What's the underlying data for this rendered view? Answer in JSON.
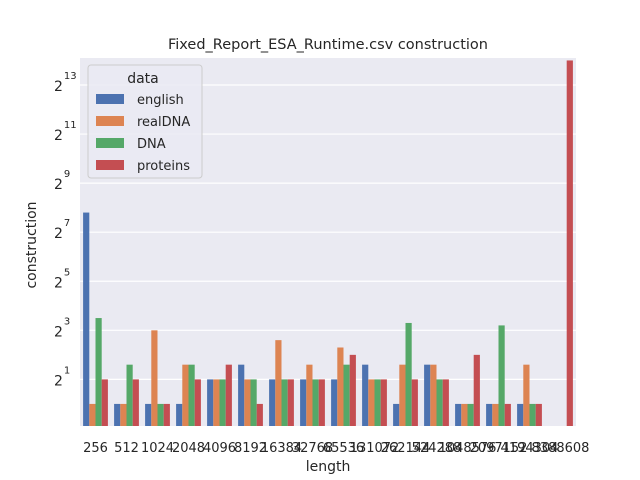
{
  "chart_data": {
    "type": "bar",
    "title": "Fixed_Report_ESA_Runtime.csv construction",
    "xlabel": "length",
    "ylabel": "construction",
    "yscale": "log2",
    "ylim_log2": [
      -0.9,
      14.1
    ],
    "yticks": [
      {
        "base": "2",
        "exp": "1",
        "log2": 1
      },
      {
        "base": "2",
        "exp": "3",
        "log2": 3
      },
      {
        "base": "2",
        "exp": "5",
        "log2": 5
      },
      {
        "base": "2",
        "exp": "7",
        "log2": 7
      },
      {
        "base": "2",
        "exp": "9",
        "log2": 9
      },
      {
        "base": "2",
        "exp": "11",
        "log2": 11
      },
      {
        "base": "2",
        "exp": "13",
        "log2": 13
      }
    ],
    "categories": [
      "256",
      "512",
      "1024",
      "2048",
      "4096",
      "8192",
      "16384",
      "32768",
      "65536",
      "131072",
      "262144",
      "524288",
      "1048576",
      "2097152",
      "4194304",
      "8388608"
    ],
    "legend": {
      "title": "data",
      "position": "upper-left"
    },
    "grid": true,
    "series": [
      {
        "name": "english",
        "color": "#4c72b0",
        "log2_values": [
          7.8,
          0,
          0,
          0,
          1,
          1.6,
          1,
          1,
          1,
          1.6,
          0,
          1.6,
          0,
          0,
          0,
          null
        ]
      },
      {
        "name": "realDNA",
        "color": "#dd8452",
        "log2_values": [
          0,
          0,
          3,
          1.6,
          1,
          1,
          2.6,
          1.6,
          2.3,
          1,
          1.6,
          1.6,
          0,
          0,
          1.6,
          null
        ]
      },
      {
        "name": "DNA",
        "color": "#55a868",
        "log2_values": [
          3.5,
          1.6,
          0,
          1.6,
          1,
          1,
          1,
          1,
          1.6,
          1,
          3.3,
          1,
          0,
          3.2,
          0,
          null
        ]
      },
      {
        "name": "proteins",
        "color": "#c44e52",
        "log2_values": [
          1,
          1,
          0,
          1,
          1.6,
          0,
          1,
          1,
          2,
          1,
          1,
          1,
          2,
          0,
          0,
          14.0
        ]
      }
    ]
  }
}
